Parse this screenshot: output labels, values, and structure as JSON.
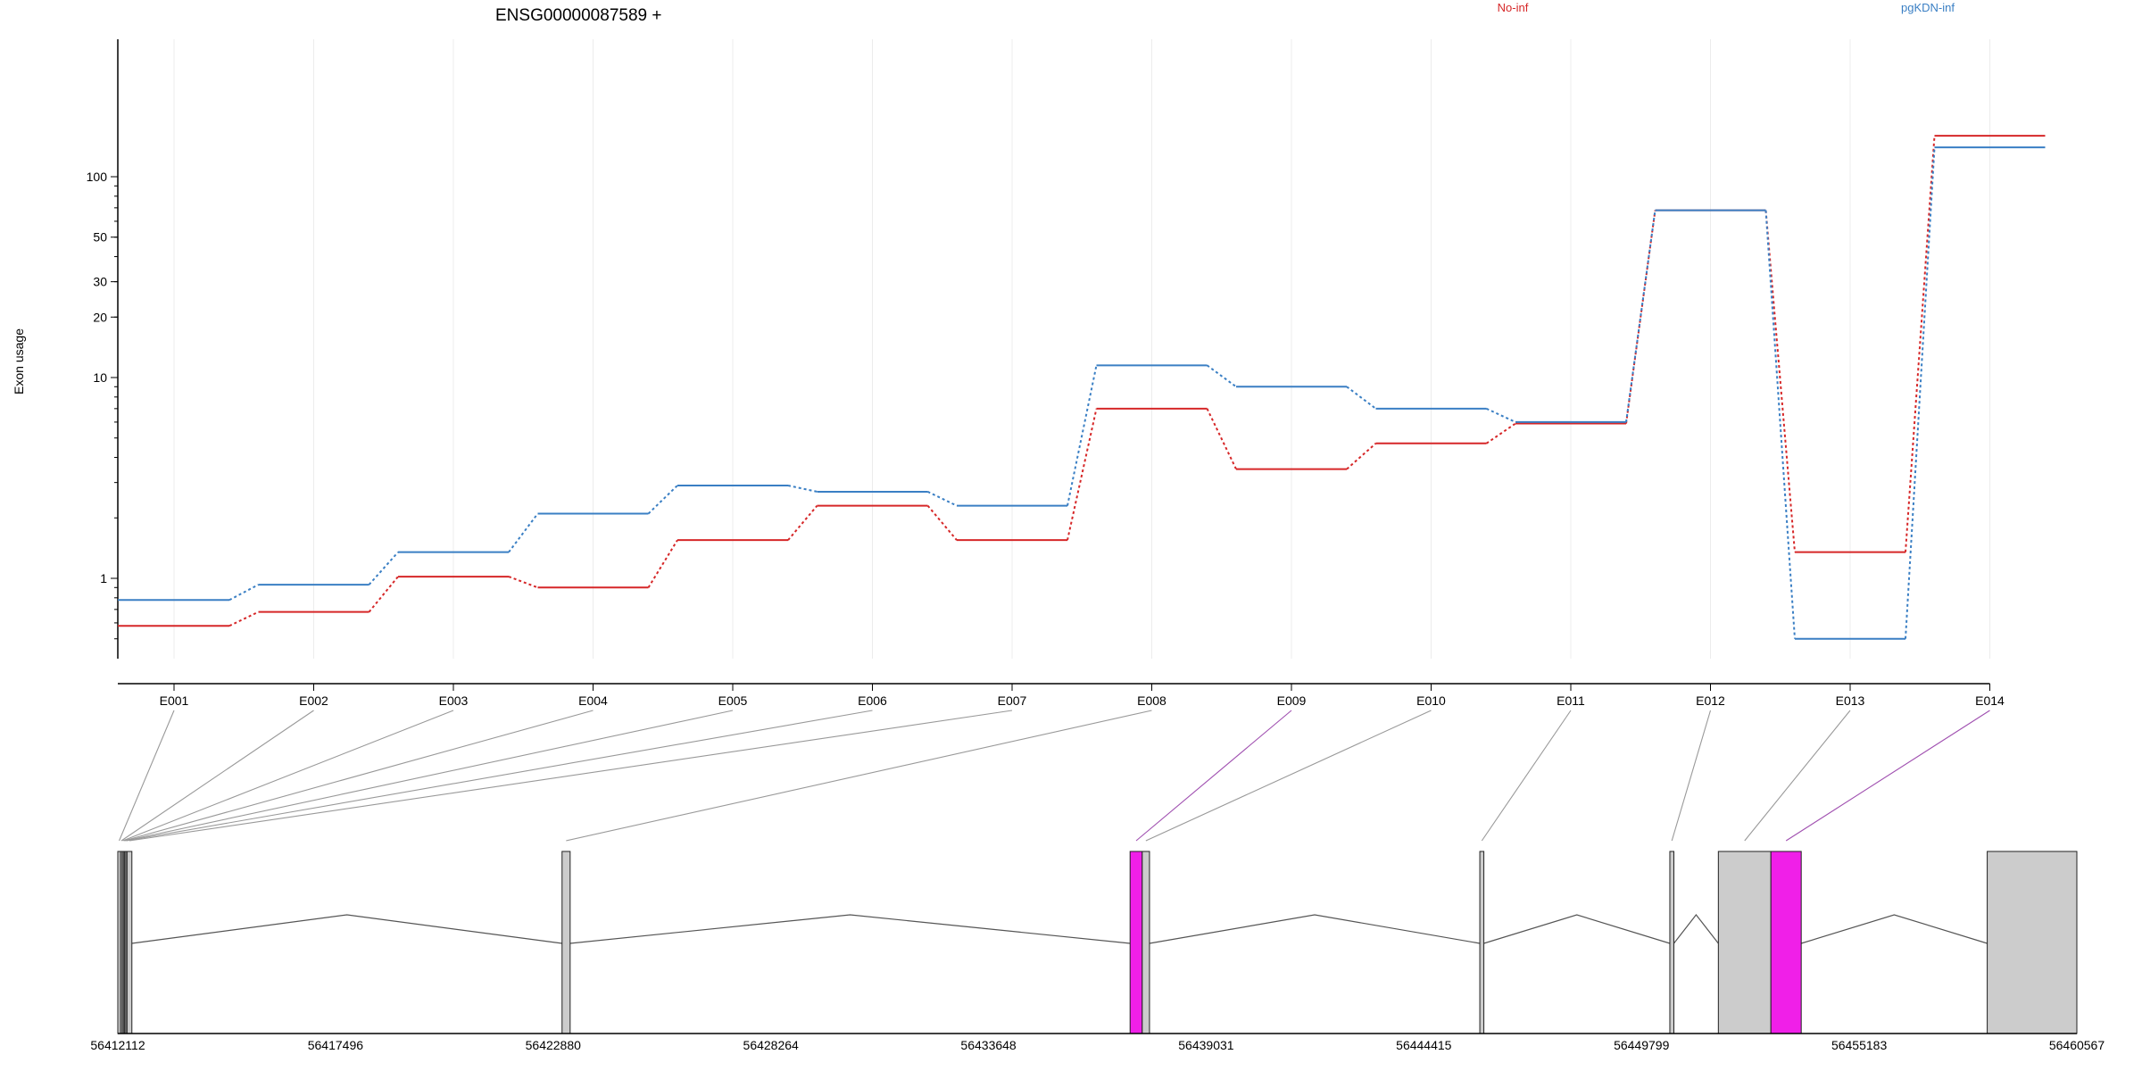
{
  "chart_data": {
    "type": "line",
    "title": "ENSG00000087589 +",
    "ylabel": "Exon usage",
    "xlabel": "",
    "y_scale": "log",
    "grid": "vertical-light",
    "categories": [
      "E001",
      "E002",
      "E003",
      "E004",
      "E005",
      "E006",
      "E007",
      "E008",
      "E009",
      "E010",
      "E011",
      "E012",
      "E013",
      "E014"
    ],
    "y_ticks": [
      "1",
      "10",
      "20",
      "30",
      "50",
      "100"
    ],
    "series": [
      {
        "name": "No-inf",
        "color": "#d62728",
        "values": [
          0.58,
          0.68,
          1.02,
          0.9,
          1.55,
          2.3,
          1.55,
          7.0,
          3.5,
          4.7,
          5.9,
          68,
          1.35,
          160
        ]
      },
      {
        "name": "pgKDN-inf",
        "color": "#3a7fc4",
        "values": [
          0.78,
          0.93,
          1.35,
          2.1,
          2.9,
          2.7,
          2.3,
          11.5,
          9.0,
          7.0,
          6.0,
          68,
          0.5,
          140
        ]
      }
    ],
    "legend_position": "top-right",
    "gene_model": {
      "genomic_ticks": [
        "56412112",
        "56417496",
        "56422880",
        "56428264",
        "56433648",
        "56439031",
        "56444415",
        "56449799",
        "56455183",
        "56460567"
      ],
      "genomic_range": [
        56412112,
        56460567
      ],
      "exon_fill_color": "#cccccc",
      "highlight_color": "#f01fe8",
      "highlighted_exons": [
        "E009",
        "E014"
      ],
      "exons": [
        {
          "id": "E001",
          "start": 56412112,
          "end": 56412180
        },
        {
          "id": "E002",
          "start": 56412180,
          "end": 56412220
        },
        {
          "id": "E003",
          "start": 56412220,
          "end": 56412250
        },
        {
          "id": "E004",
          "start": 56412250,
          "end": 56412280
        },
        {
          "id": "E005",
          "start": 56412280,
          "end": 56412310
        },
        {
          "id": "E006",
          "start": 56412310,
          "end": 56412340
        },
        {
          "id": "E007",
          "start": 56412340,
          "end": 56412460
        },
        {
          "id": "E008",
          "start": 56423100,
          "end": 56423300
        },
        {
          "id": "E009",
          "start": 56437150,
          "end": 56437450
        },
        {
          "id": "E010",
          "start": 56437450,
          "end": 56437630
        },
        {
          "id": "E011",
          "start": 56445800,
          "end": 56445900
        },
        {
          "id": "E012",
          "start": 56450500,
          "end": 56450600
        },
        {
          "id": "E013",
          "start": 56451700,
          "end": 56453000
        },
        {
          "id": "E014",
          "start": 56453000,
          "end": 56453750
        },
        {
          "id": "E015",
          "start": 56458350,
          "end": 56460567
        }
      ]
    }
  }
}
